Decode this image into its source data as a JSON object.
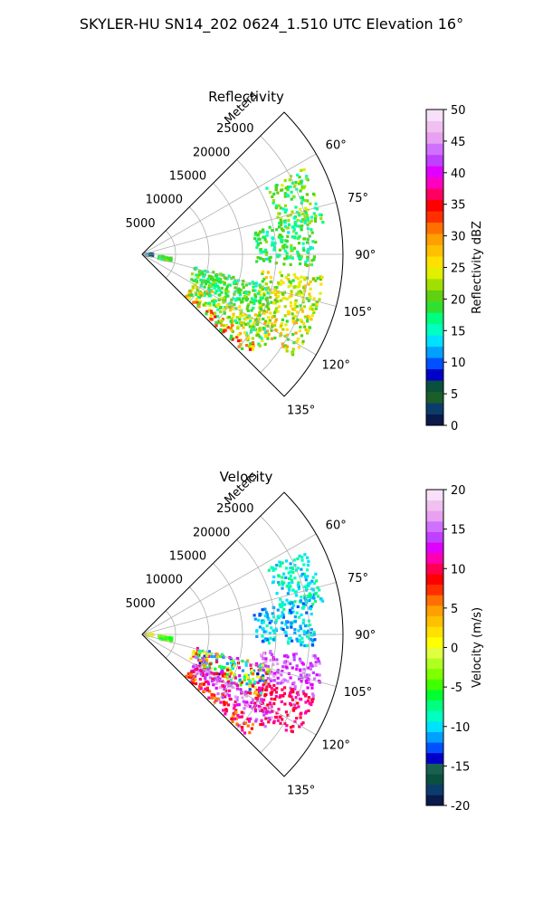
{
  "figure": {
    "suptitle": "SKYLER-HU  SN14_202  0624_1.510 UTC Elevation 16°"
  },
  "chart_data": [
    {
      "type": "heatmap",
      "projection": "polar-sector",
      "title": "Reflectivity",
      "radial_axis_label": "Meters",
      "radial_ticks": [
        5000,
        10000,
        15000,
        20000,
        25000
      ],
      "radial_tick_labels": [
        "5000",
        "10000",
        "15000",
        "20000",
        "25000"
      ],
      "radial_range": [
        0,
        30000
      ],
      "angle_ticks": [
        60,
        75,
        90,
        105,
        120,
        135
      ],
      "angle_tick_labels": [
        "60°",
        "75°",
        "90°",
        "105°",
        "120°",
        "135°"
      ],
      "angle_range": [
        45,
        135
      ],
      "grid": true,
      "colorbar": {
        "label": "Reflectivity dBZ",
        "range": [
          0,
          50
        ],
        "ticks": [
          0,
          5,
          10,
          15,
          20,
          25,
          30,
          35,
          40,
          45,
          50
        ],
        "tick_labels": [
          "0",
          "5",
          "10",
          "15",
          "20",
          "25",
          "30",
          "35",
          "40",
          "45",
          "50"
        ],
        "colors": [
          "#0a1a4a",
          "#0c3c6c",
          "#1a5e2a",
          "#0b4f3f",
          "#0000c8",
          "#0050ff",
          "#00a0ff",
          "#00e0ff",
          "#00ffc0",
          "#00ff80",
          "#30e030",
          "#60d010",
          "#a0e000",
          "#e0f000",
          "#ffe000",
          "#ffc000",
          "#ffa000",
          "#ff7000",
          "#ff3000",
          "#ff0000",
          "#ff0060",
          "#ff00c0",
          "#e000ff",
          "#c040ff",
          "#d070ff",
          "#e8a0f0",
          "#f0c0f0",
          "#f8e0f8"
        ]
      },
      "echo_regions": [
        {
          "r": [
            21000,
            27500
          ],
          "az": [
            62,
            80
          ],
          "value_range": [
            15,
            24
          ]
        },
        {
          "r": [
            17000,
            26000
          ],
          "az": [
            78,
            94
          ],
          "value_range": [
            14,
            22
          ]
        },
        {
          "r": [
            18000,
            27500
          ],
          "az": [
            97,
            110
          ],
          "value_range": [
            18,
            28
          ]
        },
        {
          "r": [
            19000,
            27500
          ],
          "az": [
            110,
            124
          ],
          "value_range": [
            18,
            30
          ]
        },
        {
          "r": [
            8000,
            20000
          ],
          "az": [
            104,
            118
          ],
          "value_range": [
            15,
            22
          ]
        },
        {
          "r": [
            9000,
            23000
          ],
          "az": [
            118,
            128
          ],
          "value_range": [
            14,
            28
          ]
        },
        {
          "r": [
            9000,
            22000
          ],
          "az": [
            128,
            134
          ],
          "value_range": [
            17,
            35
          ]
        },
        {
          "r": [
            400,
            1600
          ],
          "az": [
            87,
            100
          ],
          "value_range": [
            3,
            12
          ]
        },
        {
          "r": [
            2500,
            4500
          ],
          "az": [
            96,
            104
          ],
          "value_range": [
            17,
            22
          ]
        }
      ]
    },
    {
      "type": "heatmap",
      "projection": "polar-sector",
      "title": "Velocity",
      "radial_axis_label": "Meters",
      "radial_ticks": [
        5000,
        10000,
        15000,
        20000,
        25000
      ],
      "radial_tick_labels": [
        "5000",
        "10000",
        "15000",
        "20000",
        "25000"
      ],
      "radial_range": [
        0,
        30000
      ],
      "angle_ticks": [
        60,
        75,
        90,
        105,
        120,
        135
      ],
      "angle_tick_labels": [
        "60°",
        "75°",
        "90°",
        "105°",
        "120°",
        "135°"
      ],
      "angle_range": [
        45,
        135
      ],
      "grid": true,
      "colorbar": {
        "label": "Velocity (m/s)",
        "range": [
          -20,
          20
        ],
        "ticks": [
          -20,
          -15,
          -10,
          -5,
          0,
          5,
          10,
          15,
          20
        ],
        "tick_labels": [
          "-20",
          "-15",
          "-10",
          "-5",
          "0",
          "5",
          "10",
          "15",
          "20"
        ],
        "colors": [
          "#0a1a4a",
          "#0c3c6c",
          "#0b4f3f",
          "#1a6050",
          "#0000c8",
          "#0050ff",
          "#00a0ff",
          "#00e0ff",
          "#00ffc0",
          "#00ff80",
          "#00ff30",
          "#40ff00",
          "#80ff00",
          "#b0ff20",
          "#e0ff40",
          "#ffff00",
          "#ffe000",
          "#ffc000",
          "#ffa000",
          "#ff7000",
          "#ff3000",
          "#ff0000",
          "#ff0050",
          "#ff00b0",
          "#e000ff",
          "#c040ff",
          "#d070ff",
          "#e8a0f0",
          "#f0c0f0",
          "#f8e0f8"
        ]
      },
      "echo_regions": [
        {
          "r": [
            21000,
            27500
          ],
          "az": [
            62,
            80
          ],
          "value_range": [
            -11,
            -7
          ]
        },
        {
          "r": [
            17000,
            26000
          ],
          "az": [
            78,
            94
          ],
          "value_range": [
            -13,
            -8
          ]
        },
        {
          "r": [
            18000,
            27500
          ],
          "az": [
            97,
            110
          ],
          "value_range": [
            12,
            17
          ]
        },
        {
          "r": [
            19000,
            27500
          ],
          "az": [
            110,
            124
          ],
          "value_range": [
            9,
            12
          ]
        },
        {
          "r": [
            8000,
            20000
          ],
          "az": [
            104,
            118
          ],
          "value_range": [
            -14,
            15
          ]
        },
        {
          "r": [
            9000,
            23000
          ],
          "az": [
            118,
            128
          ],
          "value_range": [
            9,
            17
          ]
        },
        {
          "r": [
            9000,
            22000
          ],
          "az": [
            128,
            134
          ],
          "value_range": [
            4,
            12
          ]
        },
        {
          "r": [
            400,
            1600
          ],
          "az": [
            87,
            100
          ],
          "value_range": [
            -2,
            4
          ]
        },
        {
          "r": [
            2500,
            4500
          ],
          "az": [
            96,
            104
          ],
          "value_range": [
            -6,
            -3
          ]
        }
      ]
    }
  ]
}
